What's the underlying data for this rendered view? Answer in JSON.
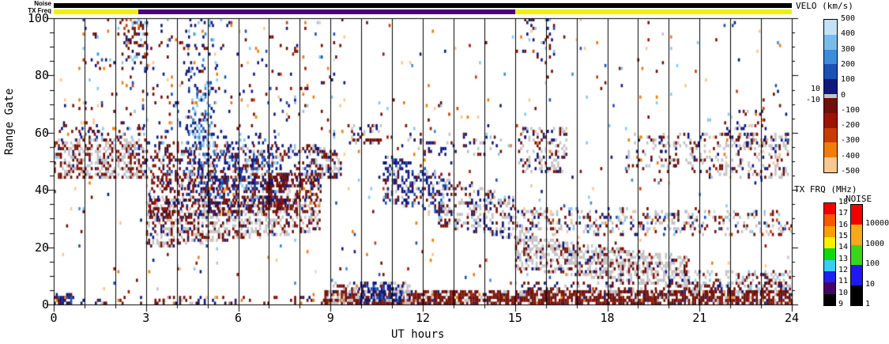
{
  "strips": {
    "noise": {
      "label": "Noise",
      "color": "#000000"
    },
    "tx_freq": {
      "label": "TX Freq",
      "segments": [
        {
          "from_hour": 0,
          "to_hour": 2.75,
          "color": "#f0f000"
        },
        {
          "from_hour": 2.75,
          "to_hour": 15,
          "color": "#4a0078"
        },
        {
          "from_hour": 15,
          "to_hour": 24,
          "color": "#f0f000"
        }
      ]
    }
  },
  "colorbars": {
    "velocity": {
      "title": "VELO (km/s)",
      "ticks": [
        500,
        400,
        300,
        200,
        100,
        0,
        -100,
        -200,
        -300,
        -400,
        -500
      ],
      "ground_band_upper_label": "10",
      "ground_band_lower_label": "-10",
      "ground_color": "#c4c3c6",
      "positive_segment_colors": [
        "#c4e2f6",
        "#78bcec",
        "#3c8cdc",
        "#1c50b4",
        "#10187c"
      ],
      "negative_segment_colors": [
        "#701008",
        "#9c1404",
        "#c83c04",
        "#f07c0c",
        "#f8c890"
      ]
    },
    "tx_frequency": {
      "title": "TX FRQ (MHz)",
      "ticks": [
        18,
        17,
        16,
        15,
        14,
        13,
        12,
        11,
        10,
        9
      ],
      "segment_colors_top_to_bottom": [
        "#f00000",
        "#f85800",
        "#f8a000",
        "#f8f000",
        "#10d810",
        "#38d0f0",
        "#2020f0",
        "#400860",
        "#000000"
      ]
    },
    "noise": {
      "title": "NOISE",
      "ticks": [
        "10000",
        "1000",
        "100",
        "10",
        "1"
      ],
      "segment_colors_top_to_bottom": [
        "#f00000",
        "#f8a818",
        "#38d818",
        "#2018f0",
        "#000000"
      ]
    }
  },
  "chart_data": {
    "type": "heatmap",
    "xlabel": "UT hours",
    "ylabel": "Range Gate",
    "xlim": [
      0,
      24
    ],
    "ylim": [
      0,
      100
    ],
    "x_major_ticks": [
      0,
      3,
      6,
      9,
      12,
      15,
      18,
      21,
      24
    ],
    "x_minor_step": 1,
    "y_major_ticks": [
      0,
      20,
      40,
      60,
      80,
      100
    ],
    "y_minor_step": 5,
    "hour_gridlines_every": 1,
    "point_palette": {
      "navy": "#10187c",
      "blue": "#1c50b4",
      "mblue": "#3c8cdc",
      "lblue": "#8cc8f0",
      "vlblue": "#c4e2f6",
      "gray": "#c4c3c6",
      "maroon": "#701008",
      "dred": "#9c1404",
      "red": "#c83c04",
      "orange": "#f07c0c",
      "peach": "#f8c890"
    },
    "clusters": [
      {
        "h0": 0,
        "h1": 24,
        "gs0": 0,
        "gs1": 100,
        "ge0": 0,
        "ge1": 100,
        "density": 0.013,
        "colors": {
          "maroon": 0.18,
          "dred": 0.06,
          "red": 0.07,
          "orange": 0.12,
          "peach": 0.15,
          "navy": 0.13,
          "blue": 0.07,
          "mblue": 0.05,
          "lblue": 0.12,
          "vlblue": 0.03,
          "gray": 0.02
        }
      },
      {
        "h0": 0,
        "h1": 3,
        "gs0": 44,
        "gs1": 58,
        "ge0": 44,
        "ge1": 58,
        "density": 0.5,
        "colors": {
          "gray": 0.5,
          "maroon": 0.33,
          "dred": 0.07,
          "navy": 0.06,
          "lblue": 0.04
        }
      },
      {
        "h0": 0.1,
        "h1": 3,
        "gs0": 57,
        "gs1": 64,
        "ge0": 57,
        "ge1": 64,
        "density": 0.15,
        "colors": {
          "maroon": 0.55,
          "navy": 0.2,
          "orange": 0.1,
          "lblue": 0.15
        }
      },
      {
        "h0": 3,
        "h1": 8.6,
        "gs0": 40,
        "gs1": 57,
        "ge0": 40,
        "ge1": 55,
        "density": 0.3,
        "colors": {
          "maroon": 0.42,
          "navy": 0.28,
          "dred": 0.08,
          "gray": 0.08,
          "blue": 0.07,
          "lblue": 0.07
        }
      },
      {
        "h0": 3,
        "h1": 8.7,
        "gs0": 20,
        "gs1": 36,
        "ge0": 26,
        "ge1": 38,
        "density": 0.45,
        "colors": {
          "gray": 0.48,
          "maroon": 0.34,
          "dred": 0.08,
          "navy": 0.1
        }
      },
      {
        "h0": 3.1,
        "h1": 8.7,
        "gs0": 30,
        "gs1": 44,
        "ge0": 34,
        "ge1": 46,
        "density": 0.35,
        "colors": {
          "maroon": 0.55,
          "dred": 0.12,
          "navy": 0.2,
          "gray": 0.08,
          "orange": 0.05
        }
      },
      {
        "h0": 4.3,
        "h1": 7.3,
        "gs0": 34,
        "gs1": 62,
        "ge0": 34,
        "ge1": 58,
        "density": 0.2,
        "colors": {
          "navy": 0.48,
          "blue": 0.2,
          "mblue": 0.12,
          "lblue": 0.14,
          "gray": 0.06
        }
      },
      {
        "h0": 4.5,
        "h1": 5.1,
        "gs0": 55,
        "gs1": 78,
        "ge0": 55,
        "ge1": 78,
        "density": 0.22,
        "colors": {
          "lblue": 0.45,
          "mblue": 0.3,
          "blue": 0.15,
          "navy": 0.1
        }
      },
      {
        "h0": 6.9,
        "h1": 7.6,
        "gs0": 33,
        "gs1": 46,
        "ge0": 33,
        "ge1": 46,
        "density": 0.55,
        "colors": {
          "maroon": 0.72,
          "dred": 0.15,
          "navy": 0.13
        }
      },
      {
        "h0": 8.3,
        "h1": 9.4,
        "gs0": 44,
        "gs1": 55,
        "ge0": 44,
        "ge1": 53,
        "density": 0.45,
        "colors": {
          "gray": 0.5,
          "maroon": 0.33,
          "navy": 0.17
        }
      },
      {
        "h0": 9.6,
        "h1": 10.7,
        "gs0": 56,
        "gs1": 63,
        "ge0": 56,
        "ge1": 63,
        "density": 0.28,
        "colors": {
          "maroon": 0.45,
          "gray": 0.3,
          "navy": 0.25
        }
      },
      {
        "h0": 10.7,
        "h1": 12.7,
        "gs0": 36,
        "gs1": 52,
        "ge0": 32,
        "ge1": 46,
        "density": 0.42,
        "colors": {
          "navy": 0.52,
          "blue": 0.15,
          "gray": 0.2,
          "maroon": 0.13
        }
      },
      {
        "h0": 12.5,
        "h1": 15.1,
        "gs0": 28,
        "gs1": 44,
        "ge0": 23,
        "ge1": 37,
        "density": 0.35,
        "colors": {
          "gray": 0.42,
          "navy": 0.3,
          "maroon": 0.22,
          "lblue": 0.06
        }
      },
      {
        "h0": 15,
        "h1": 24,
        "gs0": 24,
        "gs1": 34,
        "ge0": 24,
        "ge1": 32,
        "density": 0.26,
        "colors": {
          "gray": 0.38,
          "maroon": 0.26,
          "navy": 0.15,
          "red": 0.05,
          "lblue": 0.08,
          "peach": 0.04,
          "blue": 0.04
        }
      },
      {
        "h0": 15,
        "h1": 20.7,
        "gs0": 13,
        "gs1": 24,
        "ge0": 6,
        "ge1": 16,
        "density": 0.55,
        "colors": {
          "gray": 0.68,
          "maroon": 0.2,
          "navy": 0.08,
          "dred": 0.04
        }
      },
      {
        "h0": 20.5,
        "h1": 24,
        "gs0": 4,
        "gs1": 12,
        "ge0": 4,
        "ge1": 12,
        "density": 0.28,
        "colors": {
          "gray": 0.5,
          "maroon": 0.3,
          "navy": 0.1,
          "lblue": 0.1
        }
      },
      {
        "h0": 8.8,
        "h1": 24,
        "gs0": 0,
        "gs1": 4.5,
        "ge0": 0,
        "ge1": 4.5,
        "density": 0.75,
        "colors": {
          "maroon": 0.7,
          "dred": 0.12,
          "gray": 0.1,
          "navy": 0.05,
          "orange": 0.03
        }
      },
      {
        "h0": 9,
        "h1": 11.6,
        "gs0": 0,
        "gs1": 8,
        "ge0": 0,
        "ge1": 8,
        "density": 0.35,
        "colors": {
          "gray": 0.55,
          "maroon": 0.3,
          "navy": 0.15
        }
      },
      {
        "h0": 9.9,
        "h1": 11.4,
        "gs0": 1,
        "gs1": 8,
        "ge0": 1,
        "ge1": 8,
        "density": 0.5,
        "colors": {
          "navy": 0.72,
          "blue": 0.16,
          "gray": 0.12
        }
      },
      {
        "h0": 15,
        "h1": 24,
        "gs0": 4.5,
        "gs1": 8,
        "ge0": 4.5,
        "ge1": 8,
        "density": 0.2,
        "colors": {
          "maroon": 0.55,
          "gray": 0.28,
          "navy": 0.17
        }
      },
      {
        "h0": 0,
        "h1": 0.6,
        "gs0": 0,
        "gs1": 4,
        "ge0": 0,
        "ge1": 4,
        "density": 0.7,
        "colors": {
          "navy": 0.78,
          "blue": 0.12,
          "maroon": 0.1
        }
      },
      {
        "h0": 0,
        "h1": 8.8,
        "gs0": 0,
        "gs1": 3,
        "ge0": 0,
        "ge1": 3,
        "density": 0.22,
        "colors": {
          "maroon": 0.5,
          "navy": 0.28,
          "gray": 0.1,
          "orange": 0.12
        }
      },
      {
        "h0": 15.1,
        "h1": 16.7,
        "gs0": 46,
        "gs1": 62,
        "ge0": 46,
        "ge1": 62,
        "density": 0.32,
        "colors": {
          "gray": 0.48,
          "maroon": 0.26,
          "navy": 0.2,
          "orange": 0.06
        }
      },
      {
        "h0": 18.6,
        "h1": 21.3,
        "gs0": 46,
        "gs1": 60,
        "ge0": 46,
        "ge1": 60,
        "density": 0.2,
        "colors": {
          "gray": 0.45,
          "maroon": 0.3,
          "navy": 0.2,
          "orange": 0.05
        }
      },
      {
        "h0": 21.3,
        "h1": 23.9,
        "gs0": 44,
        "gs1": 60,
        "ge0": 44,
        "ge1": 60,
        "density": 0.32,
        "colors": {
          "gray": 0.5,
          "maroon": 0.28,
          "navy": 0.16,
          "peach": 0.06
        }
      },
      {
        "h0": 0.8,
        "h1": 9.5,
        "gs0": 58,
        "gs1": 100,
        "ge0": 58,
        "ge1": 100,
        "density": 0.045,
        "colors": {
          "maroon": 0.3,
          "navy": 0.25,
          "lblue": 0.15,
          "orange": 0.1,
          "peach": 0.1,
          "blue": 0.1
        }
      },
      {
        "h0": 2.2,
        "h1": 3.1,
        "gs0": 82,
        "gs1": 100,
        "ge0": 82,
        "ge1": 100,
        "density": 0.2,
        "colors": {
          "maroon": 0.48,
          "navy": 0.3,
          "red": 0.1,
          "lblue": 0.12
        }
      },
      {
        "h0": 4.3,
        "h1": 5.3,
        "gs0": 62,
        "gs1": 100,
        "ge0": 62,
        "ge1": 100,
        "density": 0.1,
        "colors": {
          "navy": 0.4,
          "blue": 0.2,
          "mblue": 0.2,
          "lblue": 0.2
        }
      },
      {
        "h0": 11.3,
        "h1": 14.6,
        "gs0": 52,
        "gs1": 60,
        "ge0": 52,
        "ge1": 60,
        "density": 0.15,
        "colors": {
          "navy": 0.5,
          "gray": 0.2,
          "maroon": 0.2,
          "lblue": 0.1
        }
      },
      {
        "h0": 15.3,
        "h1": 16.3,
        "gs0": 86,
        "gs1": 100,
        "ge0": 86,
        "ge1": 100,
        "density": 0.12,
        "colors": {
          "navy": 0.5,
          "maroon": 0.3,
          "lblue": 0.2
        }
      },
      {
        "h0": 21.8,
        "h1": 23.2,
        "gs0": 55,
        "gs1": 68,
        "ge0": 55,
        "ge1": 68,
        "density": 0.18,
        "colors": {
          "navy": 0.4,
          "maroon": 0.3,
          "gray": 0.2,
          "orange": 0.1
        }
      }
    ]
  }
}
